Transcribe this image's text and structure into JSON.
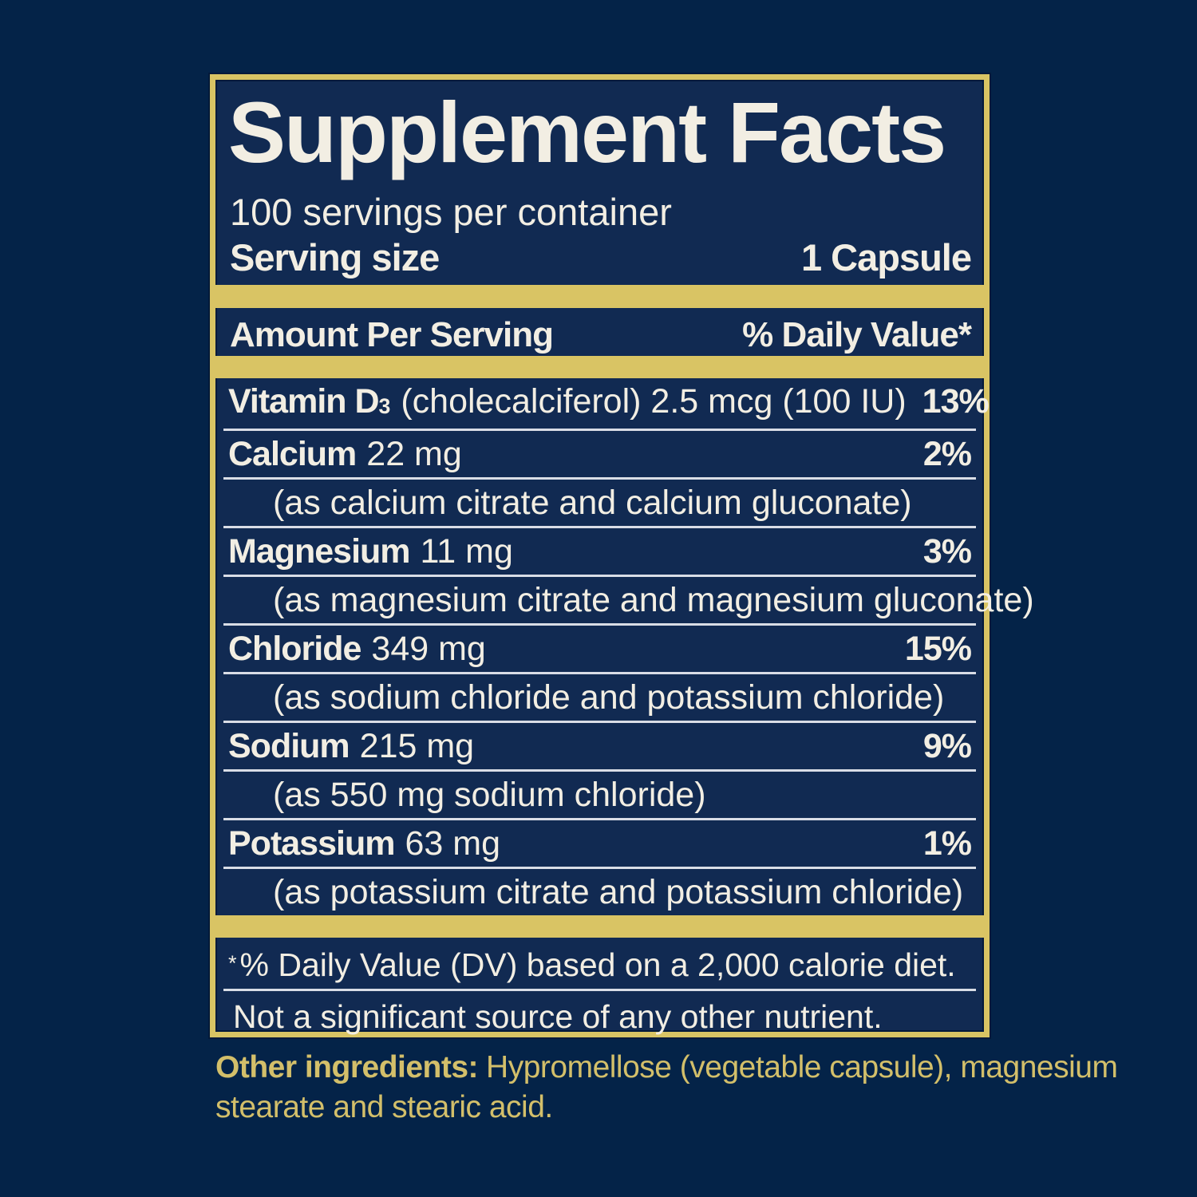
{
  "panel": {
    "title": "Supplement Facts",
    "servings_per_container": "100 servings per container",
    "serving_size_label": "Serving size",
    "serving_size_value": "1 Capsule",
    "header": {
      "amount_label": "Amount Per Serving",
      "daily_value_label": "% Daily Value*"
    },
    "nutrients": [
      {
        "name": "Vitamin D",
        "name_subscript": "3",
        "amount": "(cholecalciferol) 2.5 mcg (100 IU)",
        "daily_value": "13%"
      },
      {
        "name": "Calcium",
        "amount": "22 mg",
        "daily_value": "2%",
        "note": "(as calcium citrate and calcium gluconate)"
      },
      {
        "name": "Magnesium",
        "amount": "11 mg",
        "daily_value": "3%",
        "note": "(as magnesium citrate and magnesium gluconate)"
      },
      {
        "name": "Chloride",
        "amount": "349 mg",
        "daily_value": "15%",
        "note": "(as sodium chloride and potassium chloride)"
      },
      {
        "name": "Sodium",
        "amount": "215 mg",
        "daily_value": "9%",
        "note": "(as 550 mg sodium chloride)"
      },
      {
        "name": "Potassium",
        "amount": "63 mg",
        "daily_value": "1%",
        "note": "(as potassium citrate and potassium chloride)"
      }
    ],
    "footnote_asterisk": "*",
    "footnote": "% Daily Value (DV) based on a 2,000 calorie diet.",
    "disclaimer": "Not a significant source of any other nutrient."
  },
  "other_ingredients": {
    "label": "Other ingredients:",
    "text": "Hypromellose (vegetable capsule), magnesium stearate and stearic acid."
  },
  "colors": {
    "page_background": "#042348",
    "panel_background": "#112a52",
    "gold_accent": "#d9c464",
    "text_off_white": "#f2eee3",
    "gold_text": "#d3bf6a"
  }
}
